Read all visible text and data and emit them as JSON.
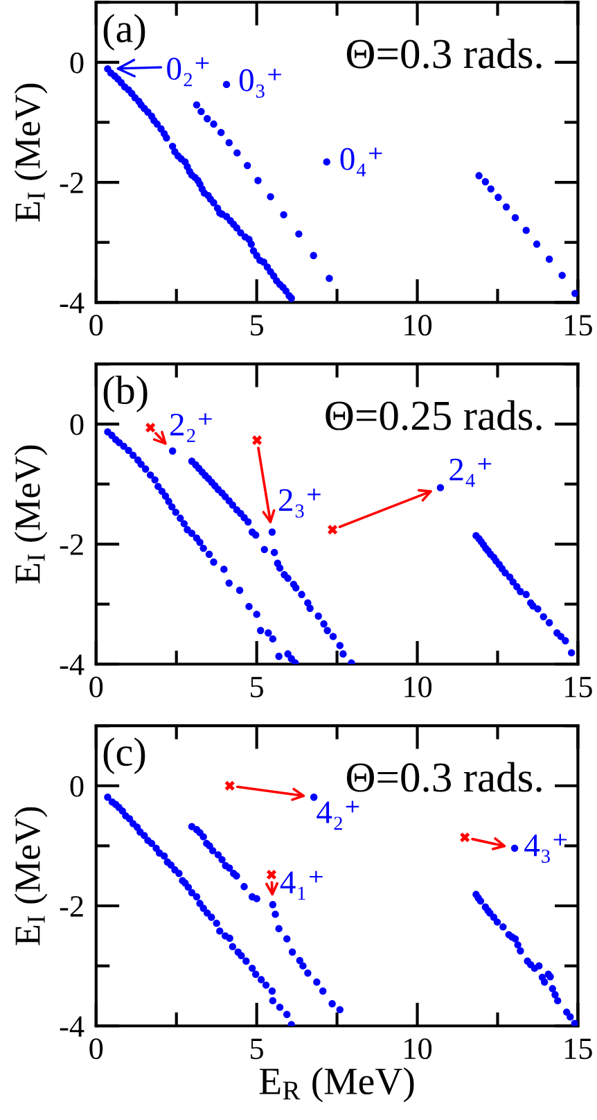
{
  "chart_data": [
    {
      "type": "scatter",
      "ylabel": "E$_{I}$ (MeV)",
      "xlim": [
        0,
        15
      ],
      "ylim": [
        -4,
        1
      ],
      "xticks": [
        0,
        5,
        10,
        15
      ],
      "yticks": [
        -4,
        -2,
        0
      ],
      "series": [
        {
          "color": "#0000ff",
          "marker": "circle",
          "x": [
            0.36,
            0.46,
            0.58,
            0.68,
            0.78,
            0.89,
            1.01,
            1.11,
            1.21,
            1.33,
            1.4,
            1.5,
            1.61,
            1.73,
            1.8,
            1.9,
            2.02,
            2.12,
            2.19,
            2.38,
            2.45,
            2.55,
            2.65,
            2.77,
            2.84,
            2.91,
            2.98,
            3.08,
            3.17,
            3.23,
            3.3,
            3.37,
            3.49,
            3.56,
            3.66,
            3.78,
            3.85,
            3.92,
            4.06,
            4.18,
            4.28,
            4.38,
            4.5,
            4.64,
            4.76,
            4.83,
            4.9,
            5.0,
            5.1,
            5.22,
            5.33,
            5.43,
            5.53,
            5.62,
            5.72,
            5.82,
            5.91,
            6.01,
            6.08,
            4.06,
            3.13,
            3.27,
            3.46,
            3.66,
            3.89,
            4.14,
            4.39,
            4.71,
            5.04,
            5.43,
            5.84,
            6.31,
            6.77,
            7.26,
            7.18,
            11.92,
            12.12,
            12.29,
            12.52,
            12.77,
            13.05,
            13.39,
            13.72,
            14.11,
            14.51,
            14.91
          ],
          "values": [
            -0.11,
            -0.18,
            -0.23,
            -0.28,
            -0.34,
            -0.41,
            -0.46,
            -0.52,
            -0.59,
            -0.65,
            -0.71,
            -0.77,
            -0.83,
            -0.9,
            -0.97,
            -1.03,
            -1.11,
            -1.19,
            -1.26,
            -1.4,
            -1.49,
            -1.56,
            -1.61,
            -1.66,
            -1.74,
            -1.82,
            -1.88,
            -1.92,
            -1.97,
            -2.03,
            -2.11,
            -2.18,
            -2.22,
            -2.28,
            -2.34,
            -2.43,
            -2.51,
            -2.53,
            -2.57,
            -2.64,
            -2.7,
            -2.76,
            -2.84,
            -2.91,
            -2.95,
            -3.03,
            -3.14,
            -3.22,
            -3.3,
            -3.33,
            -3.41,
            -3.49,
            -3.56,
            -3.64,
            -3.7,
            -3.75,
            -3.81,
            -3.89,
            -3.93,
            -0.37,
            -0.71,
            -0.82,
            -0.94,
            -1.03,
            -1.17,
            -1.34,
            -1.51,
            -1.72,
            -1.97,
            -2.24,
            -2.54,
            -2.86,
            -3.22,
            -3.6,
            -1.66,
            -1.89,
            -1.99,
            -2.11,
            -2.25,
            -2.41,
            -2.59,
            -2.8,
            -3.03,
            -3.28,
            -3.55,
            -3.85
          ]
        }
      ],
      "annotations": [
        "(a)",
        "Θ=0.3 rads.",
        {
          "text": "0₂⁺",
          "x": 0.36,
          "y": -0.11
        },
        {
          "text": "0₃⁺",
          "x": 4.06,
          "y": -0.37
        },
        {
          "text": "0₄⁺",
          "x": 7.18,
          "y": -1.66
        }
      ]
    },
    {
      "type": "scatter",
      "ylabel": "E$_{I}$ (MeV)",
      "xlim": [
        0,
        15
      ],
      "ylim": [
        -4,
        1
      ],
      "xticks": [
        0,
        5,
        10,
        15
      ],
      "yticks": [
        -4,
        -2,
        0
      ],
      "series": [
        {
          "color": "#0000ff",
          "marker": "circle",
          "x": [
            0.36,
            0.49,
            0.61,
            0.72,
            0.86,
            1.01,
            1.15,
            1.3,
            1.4,
            1.54,
            1.69,
            1.83,
            1.93,
            2.05,
            2.16,
            2.26,
            2.36,
            2.48,
            2.62,
            2.74,
            2.84,
            2.98,
            3.13,
            3.23,
            3.34,
            3.52,
            3.66,
            3.98,
            4.14,
            4.47,
            4.76,
            5.0,
            5.12,
            5.36,
            5.5,
            5.69,
            5.97,
            6.08,
            6.2,
            2.38,
            2.98,
            3.1,
            3.2,
            3.3,
            3.4,
            3.5,
            3.6,
            3.7,
            3.8,
            3.92,
            4.02,
            4.14,
            4.25,
            4.38,
            4.5,
            4.61,
            4.73,
            4.86,
            4.97,
            5.48,
            5.24,
            5.55,
            5.65,
            5.72,
            5.86,
            5.97,
            6.15,
            6.22,
            6.4,
            6.59,
            6.66,
            6.92,
            7.09,
            7.2,
            7.38,
            7.59,
            7.69,
            7.95,
            10.72,
            11.83,
            11.92,
            11.99,
            12.06,
            12.13,
            12.2,
            12.28,
            12.38,
            12.45,
            12.55,
            12.64,
            12.74,
            12.88,
            12.98,
            13.1,
            13.21,
            13.39,
            13.53,
            13.6,
            13.75,
            13.93,
            14.11,
            14.35,
            14.47,
            14.61,
            14.8
          ],
          "values": [
            -0.13,
            -0.19,
            -0.26,
            -0.31,
            -0.37,
            -0.44,
            -0.52,
            -0.6,
            -0.67,
            -0.75,
            -0.85,
            -0.93,
            -1.04,
            -1.12,
            -1.2,
            -1.29,
            -1.38,
            -1.47,
            -1.57,
            -1.66,
            -1.76,
            -1.82,
            -1.9,
            -1.97,
            -2.07,
            -2.17,
            -2.3,
            -2.42,
            -2.65,
            -2.77,
            -3.04,
            -3.17,
            -3.44,
            -3.48,
            -3.58,
            -3.87,
            -3.83,
            -3.91,
            -3.98,
            -0.45,
            -0.62,
            -0.68,
            -0.74,
            -0.8,
            -0.86,
            -0.91,
            -0.97,
            -1.03,
            -1.09,
            -1.15,
            -1.21,
            -1.28,
            -1.35,
            -1.43,
            -1.49,
            -1.56,
            -1.63,
            -1.8,
            -1.85,
            -1.8,
            -2.09,
            -2.14,
            -2.32,
            -2.4,
            -2.51,
            -2.57,
            -2.67,
            -2.73,
            -2.84,
            -2.98,
            -3.07,
            -3.2,
            -3.33,
            -3.44,
            -3.54,
            -3.69,
            -3.83,
            -3.98,
            -1.06,
            -1.86,
            -1.91,
            -1.96,
            -2.01,
            -2.07,
            -2.11,
            -2.17,
            -2.22,
            -2.28,
            -2.34,
            -2.41,
            -2.48,
            -2.55,
            -2.63,
            -2.71,
            -2.79,
            -2.84,
            -2.98,
            -3.03,
            -3.08,
            -3.21,
            -3.31,
            -3.48,
            -3.54,
            -3.61,
            -3.81
          ]
        },
        {
          "color": "#ff0000",
          "marker": "cross",
          "x": [
            1.69,
            5.01,
            7.36
          ],
          "values": [
            -0.06,
            -0.27,
            -1.76
          ]
        }
      ],
      "annotations": [
        "(b)",
        "Θ=0.25 rads.",
        {
          "text": "2₂⁺",
          "x": 2.38,
          "y": -0.45
        },
        {
          "text": "2₃⁺",
          "x": 5.48,
          "y": -1.8
        },
        {
          "text": "2₄⁺",
          "x": 10.72,
          "y": -1.06
        }
      ]
    },
    {
      "type": "scatter",
      "xlabel": "E$_{R}$ (MeV)",
      "ylabel": "E$_{I}$ (MeV)",
      "xlim": [
        0,
        15
      ],
      "ylim": [
        -4,
        1
      ],
      "xticks": [
        0,
        5,
        10,
        15
      ],
      "yticks": [
        -4,
        -2,
        0
      ],
      "series": [
        {
          "color": "#0000ff",
          "marker": "circle",
          "x": [
            0.36,
            0.5,
            0.61,
            0.71,
            0.82,
            0.92,
            1.04,
            1.15,
            1.28,
            1.37,
            1.5,
            1.61,
            1.73,
            1.87,
            1.97,
            2.12,
            2.22,
            2.33,
            2.45,
            2.58,
            2.69,
            2.77,
            2.87,
            2.98,
            3.13,
            3.23,
            3.34,
            3.46,
            3.59,
            3.75,
            3.85,
            4.02,
            4.16,
            4.25,
            4.42,
            4.52,
            4.67,
            4.86,
            4.97,
            5.14,
            5.29,
            5.48,
            5.5,
            5.72,
            5.94,
            6.08,
            2.98,
            3.13,
            3.23,
            3.34,
            3.44,
            3.53,
            3.63,
            3.8,
            3.92,
            4.03,
            4.15,
            4.28,
            4.37,
            4.61,
            4.86,
            5.0,
            5.5,
            5.58,
            5.69,
            5.94,
            6.11,
            6.34,
            6.44,
            6.59,
            6.87,
            7.06,
            7.35,
            7.59,
            6.78,
            13.03,
            11.83,
            11.9,
            11.97,
            12.12,
            12.2,
            12.26,
            12.38,
            12.49,
            12.67,
            12.85,
            12.95,
            13.05,
            13.13,
            13.21,
            13.43,
            13.53,
            13.65,
            13.79,
            13.89,
            13.96,
            14.08,
            14.14,
            14.21,
            14.29,
            14.37,
            14.65,
            14.76,
            14.9
          ],
          "values": [
            -0.19,
            -0.27,
            -0.31,
            -0.36,
            -0.42,
            -0.5,
            -0.55,
            -0.63,
            -0.69,
            -0.77,
            -0.83,
            -0.91,
            -0.96,
            -1.04,
            -1.12,
            -1.17,
            -1.27,
            -1.32,
            -1.4,
            -1.46,
            -1.58,
            -1.62,
            -1.69,
            -1.78,
            -1.85,
            -1.96,
            -2.04,
            -2.12,
            -2.19,
            -2.29,
            -2.42,
            -2.5,
            -2.54,
            -2.68,
            -2.77,
            -2.83,
            -2.92,
            -3.04,
            -3.14,
            -3.23,
            -3.32,
            -3.42,
            -3.58,
            -3.69,
            -3.81,
            -3.98,
            -0.68,
            -0.73,
            -0.78,
            -0.85,
            -0.96,
            -1.0,
            -1.08,
            -1.15,
            -1.23,
            -1.33,
            -1.37,
            -1.46,
            -1.5,
            -1.68,
            -1.85,
            -1.88,
            -1.98,
            -2.14,
            -2.38,
            -2.55,
            -2.77,
            -2.91,
            -3.0,
            -3.12,
            -3.27,
            -3.42,
            -3.63,
            -3.73,
            -0.19,
            -1.04,
            -1.81,
            -1.87,
            -1.92,
            -2.02,
            -2.08,
            -2.12,
            -2.19,
            -2.27,
            -2.35,
            -2.48,
            -2.52,
            -2.55,
            -2.65,
            -2.75,
            -2.92,
            -2.98,
            -3.04,
            -3.0,
            -3.19,
            -3.27,
            -3.14,
            -3.18,
            -3.38,
            -3.48,
            -3.58,
            -3.77,
            -3.85,
            -3.96
          ]
        },
        {
          "color": "#ff0000",
          "marker": "cross",
          "x": [
            4.16,
            5.46,
            11.48
          ],
          "values": [
            0.0,
            -1.48,
            -0.86
          ]
        }
      ],
      "annotations": [
        "(c)",
        "Θ=0.3 rads.",
        {
          "text": "4₂⁺",
          "x": 6.78,
          "y": -0.19
        },
        {
          "text": "4₁⁺",
          "x": 5.5,
          "y": -1.98
        },
        {
          "text": "4₃⁺",
          "x": 13.03,
          "y": -1.04
        }
      ]
    }
  ]
}
